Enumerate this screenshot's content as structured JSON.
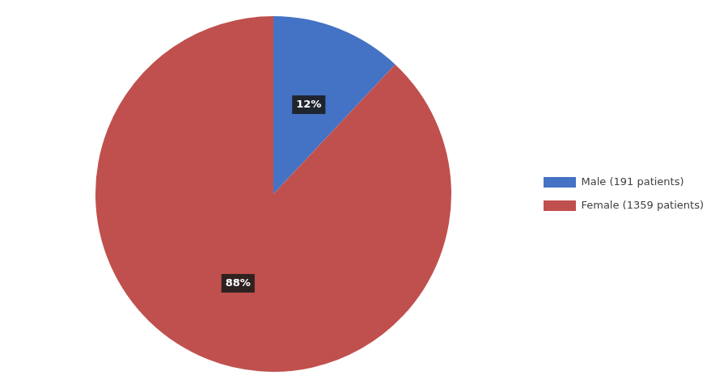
{
  "chart_data": {
    "type": "pie",
    "categories": [
      "Male (191 patients)",
      "Female (1359 patients)"
    ],
    "values": [
      12,
      88
    ],
    "value_labels": [
      "12%",
      "88%"
    ],
    "colors": [
      "#4472C4",
      "#C0504D"
    ],
    "data_labels": true,
    "legend": "right"
  }
}
